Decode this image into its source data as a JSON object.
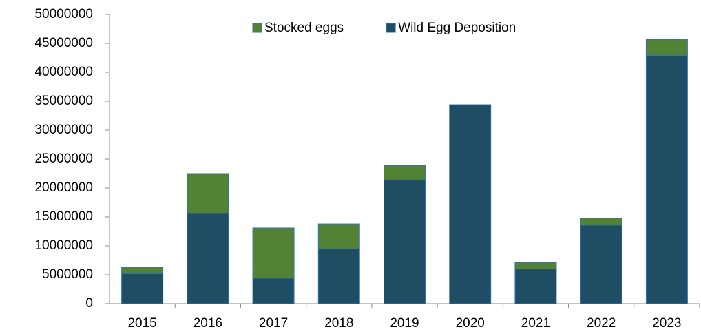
{
  "chart_data": {
    "type": "stacked_bar",
    "categories": [
      "2015",
      "2016",
      "2017",
      "2018",
      "2019",
      "2020",
      "2021",
      "2022",
      "2023"
    ],
    "series": [
      {
        "name": "Wild Egg Deposition",
        "color": "#1f4e64",
        "values": [
          5200000,
          15600000,
          4400000,
          9500000,
          21400000,
          34400000,
          6000000,
          13600000,
          42900000
        ]
      },
      {
        "name": "Stocked eggs",
        "color": "#548235",
        "values": [
          1100000,
          6900000,
          8700000,
          4300000,
          2500000,
          0,
          1100000,
          1200000,
          2800000
        ]
      }
    ],
    "ylim": [
      0,
      50000000
    ],
    "yticks": [
      0,
      5000000,
      10000000,
      15000000,
      20000000,
      25000000,
      30000000,
      35000000,
      40000000,
      45000000,
      50000000
    ],
    "grid": false,
    "legend": "top"
  }
}
